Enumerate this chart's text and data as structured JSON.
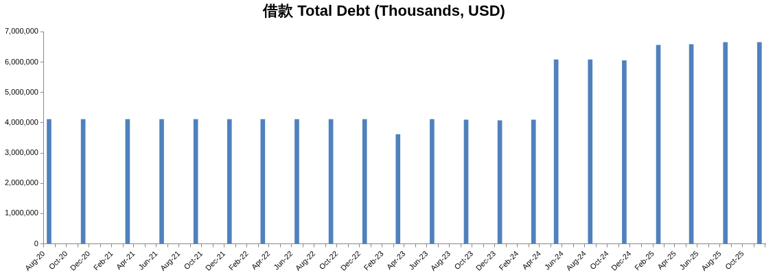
{
  "chart_data": {
    "type": "bar",
    "title": "借款 Total Debt (Thousands, USD)",
    "x": [
      "2020-08-15",
      "2020-11-15",
      "2021-03-15",
      "2021-06-15",
      "2021-09-15",
      "2021-12-15",
      "2022-03-15",
      "2022-06-15",
      "2022-09-15",
      "2022-12-15",
      "2023-03-15",
      "2023-06-15",
      "2023-09-15",
      "2023-12-15",
      "2024-03-15",
      "2024-05-15",
      "2024-08-15",
      "2024-11-15",
      "2025-02-15",
      "2025-05-15",
      "2025-08-15",
      "2025-11-15"
    ],
    "values": [
      4110000,
      4110000,
      4110000,
      4110000,
      4110000,
      4110000,
      4110000,
      4110000,
      4110000,
      4110000,
      3610000,
      4110000,
      4090000,
      4070000,
      4090000,
      6080000,
      6080000,
      6050000,
      6560000,
      6580000,
      6650000,
      6650000
    ],
    "color": "#4f81bd",
    "xlim": [
      "2020-08-01",
      "2025-12-01"
    ],
    "xticks": [
      {
        "value": "2020-08-01",
        "label": "Aug-20"
      },
      {
        "value": "2020-10-01",
        "label": "Oct-20"
      },
      {
        "value": "2020-12-01",
        "label": "Dec-20"
      },
      {
        "value": "2021-02-01",
        "label": "Feb-21"
      },
      {
        "value": "2021-04-01",
        "label": "Apr-21"
      },
      {
        "value": "2021-06-01",
        "label": "Jun-21"
      },
      {
        "value": "2021-08-01",
        "label": "Aug-21"
      },
      {
        "value": "2021-10-01",
        "label": "Oct-21"
      },
      {
        "value": "2021-12-01",
        "label": "Dec-21"
      },
      {
        "value": "2022-02-01",
        "label": "Feb-22"
      },
      {
        "value": "2022-04-01",
        "label": "Apr-22"
      },
      {
        "value": "2022-06-01",
        "label": "Jun-22"
      },
      {
        "value": "2022-08-01",
        "label": "Aug-22"
      },
      {
        "value": "2022-10-01",
        "label": "Oct-22"
      },
      {
        "value": "2022-12-01",
        "label": "Dec-22"
      },
      {
        "value": "2023-02-01",
        "label": "Feb-23"
      },
      {
        "value": "2023-04-01",
        "label": "Apr-23"
      },
      {
        "value": "2023-06-01",
        "label": "Jun-23"
      },
      {
        "value": "2023-08-01",
        "label": "Aug-23"
      },
      {
        "value": "2023-10-01",
        "label": "Oct-23"
      },
      {
        "value": "2023-12-01",
        "label": "Dec-23"
      },
      {
        "value": "2024-02-01",
        "label": "Feb-24"
      },
      {
        "value": "2024-04-01",
        "label": "Apr-24"
      },
      {
        "value": "2024-06-01",
        "label": "Jun-24"
      },
      {
        "value": "2024-08-01",
        "label": "Aug-24"
      },
      {
        "value": "2024-10-01",
        "label": "Oct-24"
      },
      {
        "value": "2024-12-01",
        "label": "Dec-24"
      },
      {
        "value": "2025-02-01",
        "label": "Feb-25"
      },
      {
        "value": "2025-04-01",
        "label": "Apr-25"
      },
      {
        "value": "2025-06-01",
        "label": "Jun-25"
      },
      {
        "value": "2025-08-01",
        "label": "Aug-25"
      },
      {
        "value": "2025-10-01",
        "label": "Oct-25"
      },
      {
        "value": "2025-12-01",
        "label": null
      }
    ],
    "ylim": [
      0,
      7000000
    ],
    "yticks": [
      0,
      {
        "value": 1000000,
        "label": "1,000,000"
      },
      {
        "value": 2000000,
        "label": "2,000,000"
      },
      {
        "value": 3000000,
        "label": "3,000,000"
      },
      {
        "value": 4000000,
        "label": "4,000,000"
      },
      {
        "value": 5000000,
        "label": "5,000,000"
      },
      {
        "value": 6000000,
        "label": "6,000,000"
      },
      {
        "value": 7000000,
        "label": "7,000,000"
      }
    ],
    "grid": false
  }
}
